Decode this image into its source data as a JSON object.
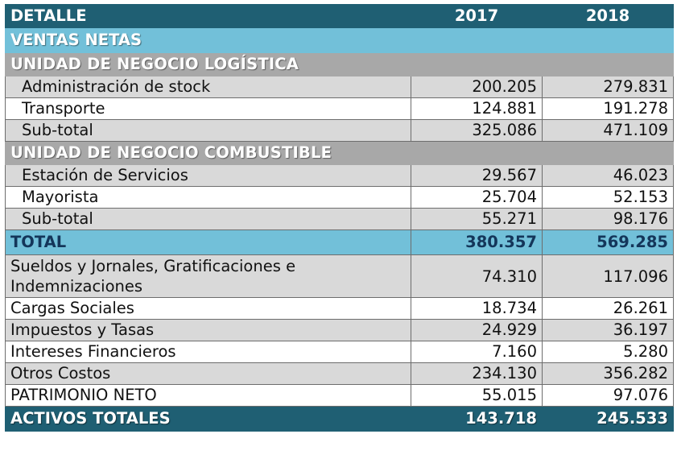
{
  "header": {
    "label": "DETALLE",
    "year1": "2017",
    "year2": "2018"
  },
  "section_title": "VENTAS NETAS",
  "logistica": {
    "title": "UNIDAD DE NEGOCIO LOGÍSTICA",
    "rows": [
      {
        "label": "Administración de stock",
        "v2017": "200.205",
        "v2018": "279.831"
      },
      {
        "label": "Transporte",
        "v2017": "124.881",
        "v2018": "191.278"
      },
      {
        "label": "Sub-total",
        "v2017": "325.086",
        "v2018": "471.109"
      }
    ]
  },
  "combustible": {
    "title": "UNIDAD DE NEGOCIO COMBUSTIBLE",
    "rows": [
      {
        "label": "Estación de Servicios",
        "v2017": "29.567",
        "v2018": "46.023"
      },
      {
        "label": "Mayorista",
        "v2017": "25.704",
        "v2018": "52.153"
      },
      {
        "label": "Sub-total",
        "v2017": "55.271",
        "v2018": "98.176"
      }
    ]
  },
  "total": {
    "label": "TOTAL",
    "v2017": "380.357",
    "v2018": "569.285"
  },
  "expenses": [
    {
      "label": "Sueldos y Jornales, Gratificaciones e Indemnizaciones",
      "v2017": "74.310",
      "v2018": "117.096"
    },
    {
      "label": "Cargas Sociales",
      "v2017": "18.734",
      "v2018": "26.261"
    },
    {
      "label": "Impuestos y Tasas",
      "v2017": "24.929",
      "v2018": "36.197"
    },
    {
      "label": "Intereses Financieros",
      "v2017": "7.160",
      "v2018": "5.280"
    },
    {
      "label": "Otros Costos",
      "v2017": "234.130",
      "v2018": "356.282"
    },
    {
      "label": "PATRIMONIO NETO",
      "v2017": "55.015",
      "v2018": "97.076"
    }
  ],
  "final": {
    "label": "ACTIVOS TOTALES",
    "v2017": "143.718",
    "v2018": "245.533"
  }
}
